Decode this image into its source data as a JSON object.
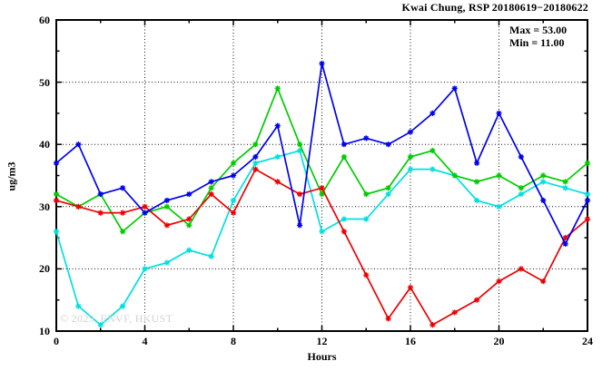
{
  "header": {
    "title": "Kwai Chung, RSP 20180619−20180622"
  },
  "legend": {
    "max_label": "Max = 53.00",
    "min_label": "Min = 11.00"
  },
  "watermark": "© 2025, ENVF, HKUST",
  "chart_data": {
    "type": "line",
    "title": "Kwai Chung, RSP 20180619−20180622",
    "xlabel": "Hours",
    "ylabel": "ug/m3",
    "xlim": [
      0,
      24
    ],
    "ylim": [
      10,
      60
    ],
    "grid": true,
    "xticks": [
      0,
      4,
      8,
      12,
      16,
      20,
      24
    ],
    "yticks": [
      10,
      20,
      30,
      40,
      50,
      60
    ],
    "x_minor_ticks": [
      2,
      6,
      10,
      14,
      18,
      22
    ],
    "y_minor_ticks": [
      15,
      25,
      35,
      45,
      55
    ],
    "annotations": [
      "Max = 53.00",
      "Min = 11.00"
    ],
    "x": [
      0,
      1,
      2,
      3,
      4,
      5,
      6,
      7,
      8,
      9,
      10,
      11,
      12,
      13,
      14,
      15,
      16,
      17,
      18,
      19,
      20,
      21,
      22,
      23,
      24
    ],
    "series": [
      {
        "name": "day-cyan",
        "color": "#00e0e0",
        "values": [
          26,
          14,
          11,
          14,
          20,
          21,
          23,
          22,
          31,
          37,
          38,
          39,
          26,
          28,
          28,
          32,
          36,
          36,
          35,
          31,
          30,
          32,
          34,
          33,
          32
        ]
      },
      {
        "name": "day-green",
        "color": "#00cc00",
        "values": [
          32,
          30,
          32,
          26,
          29,
          30,
          27,
          33,
          37,
          40,
          49,
          40,
          32,
          38,
          32,
          33,
          38,
          39,
          35,
          34,
          35,
          33,
          35,
          34,
          37
        ]
      },
      {
        "name": "day-red",
        "color": "#ee0000",
        "values": [
          31,
          30,
          29,
          29,
          30,
          27,
          28,
          32,
          29,
          36,
          34,
          32,
          33,
          26,
          19,
          12,
          17,
          11,
          13,
          15,
          18,
          20,
          18,
          25,
          28
        ]
      },
      {
        "name": "day-blue",
        "color": "#0000ee",
        "values": [
          37,
          40,
          32,
          33,
          29,
          31,
          32,
          34,
          35,
          38,
          43,
          27,
          53,
          40,
          41,
          40,
          42,
          45,
          49,
          37,
          45,
          38,
          31,
          24,
          31
        ]
      }
    ]
  }
}
